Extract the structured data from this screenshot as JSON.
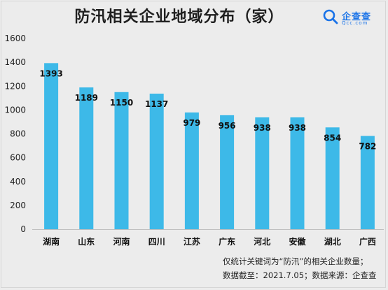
{
  "title": "防汛相关企业地域分布（家）",
  "logo": {
    "name": "企查查",
    "domain": "Qcc.com",
    "icon": "search-magnifier-icon",
    "color": "#1a73e8"
  },
  "notes": [
    "仅统计关键词为“防汛”的相关企业数量；",
    "数据截至：2021.7.05；数据来源：企查查"
  ],
  "chart_data": {
    "type": "bar",
    "title": "防汛相关企业地域分布（家）",
    "categories": [
      "湖南",
      "山东",
      "河南",
      "四川",
      "江苏",
      "广东",
      "河北",
      "安徽",
      "湖北",
      "广西"
    ],
    "values": [
      1393,
      1189,
      1150,
      1137,
      979,
      956,
      938,
      938,
      854,
      782
    ],
    "data_labels": [
      "1393",
      "1189",
      "1150",
      "1137",
      "979",
      "956",
      "938",
      "938",
      "854",
      "782"
    ],
    "yticks": [
      "0",
      "200",
      "400",
      "600",
      "800",
      "1000",
      "1200",
      "1400",
      "1600"
    ],
    "ylim": [
      0,
      1600
    ],
    "xlabel": "",
    "ylabel": "",
    "grid": false,
    "bar_color": "#3db9e8"
  }
}
